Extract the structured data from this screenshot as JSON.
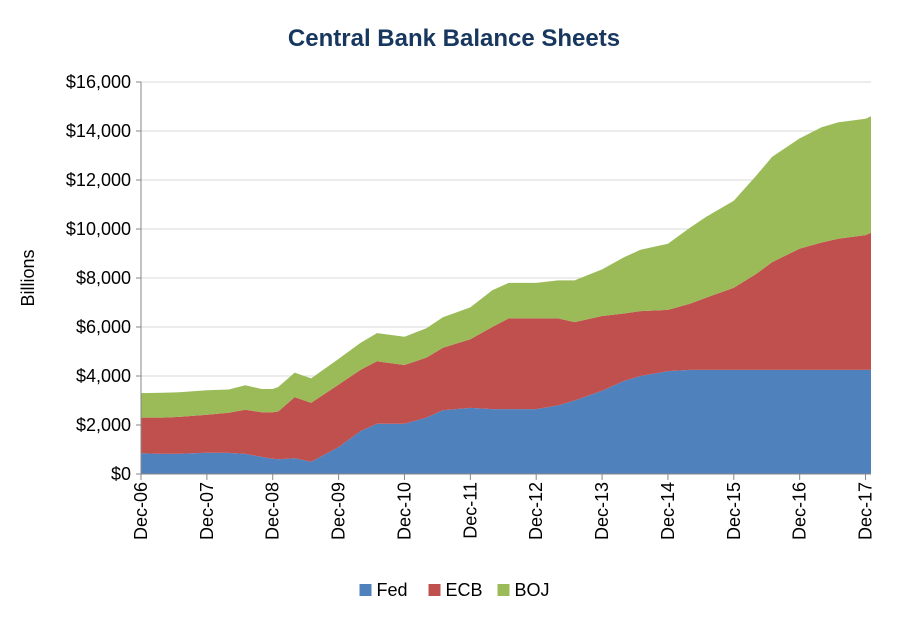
{
  "chart_data": {
    "type": "area",
    "stacked": true,
    "title": "Central Bank Balance Sheets",
    "xlabel": "",
    "ylabel": "Billions",
    "ylim": [
      0,
      16000
    ],
    "y_ticks": [
      0,
      2000,
      4000,
      6000,
      8000,
      10000,
      12000,
      14000,
      16000
    ],
    "y_tick_labels": [
      "$0",
      "$2,000",
      "$4,000",
      "$6,000",
      "$8,000",
      "$10,000",
      "$12,000",
      "$14,000",
      "$16,000"
    ],
    "x_tick_labels": [
      "Dec-06",
      "Dec-07",
      "Dec-08",
      "Dec-09",
      "Dec-10",
      "Dec-11",
      "Dec-12",
      "Dec-13",
      "Dec-14",
      "Dec-15",
      "Dec-16",
      "Dec-17"
    ],
    "xlim": [
      2006.917,
      2018.0
    ],
    "grid": true,
    "legend_position": "bottom",
    "x": [
      2006.917,
      2007.25,
      2007.5,
      2007.917,
      2008.25,
      2008.5,
      2008.75,
      2008.917,
      2009.0,
      2009.25,
      2009.5,
      2009.917,
      2010.25,
      2010.5,
      2010.917,
      2011.25,
      2011.5,
      2011.917,
      2012.25,
      2012.5,
      2012.917,
      2013.25,
      2013.5,
      2013.917,
      2014.25,
      2014.5,
      2014.917,
      2015.25,
      2015.5,
      2015.917,
      2016.25,
      2016.5,
      2016.917,
      2017.25,
      2017.5,
      2017.917,
      2018.0
    ],
    "series": [
      {
        "name": "Fed",
        "color": "#4f81bd",
        "values": [
          850,
          820,
          830,
          870,
          860,
          820,
          700,
          620,
          600,
          640,
          500,
          1100,
          1750,
          2050,
          2050,
          2300,
          2600,
          2700,
          2650,
          2650,
          2650,
          2800,
          3000,
          3400,
          3800,
          4000,
          4200,
          4250,
          4250,
          4250,
          4250,
          4250,
          4250,
          4250,
          4250,
          4250,
          4250
        ]
      },
      {
        "name": "ECB",
        "color": "#c0504d",
        "values": [
          1450,
          1480,
          1500,
          1550,
          1640,
          1800,
          1820,
          1900,
          1950,
          2500,
          2400,
          2550,
          2500,
          2550,
          2400,
          2450,
          2550,
          2800,
          3350,
          3700,
          3700,
          3550,
          3200,
          3050,
          2750,
          2650,
          2500,
          2700,
          2950,
          3350,
          3900,
          4400,
          4950,
          5200,
          5350,
          5500,
          5600
        ]
      },
      {
        "name": "BOJ",
        "color": "#9bbb59",
        "values": [
          1000,
          1020,
          1010,
          1000,
          950,
          1000,
          950,
          950,
          1000,
          1000,
          1000,
          1050,
          1100,
          1150,
          1150,
          1200,
          1250,
          1300,
          1500,
          1450,
          1450,
          1550,
          1700,
          1900,
          2300,
          2500,
          2700,
          3100,
          3300,
          3550,
          4000,
          4300,
          4500,
          4700,
          4750,
          4750,
          4750
        ]
      }
    ]
  }
}
